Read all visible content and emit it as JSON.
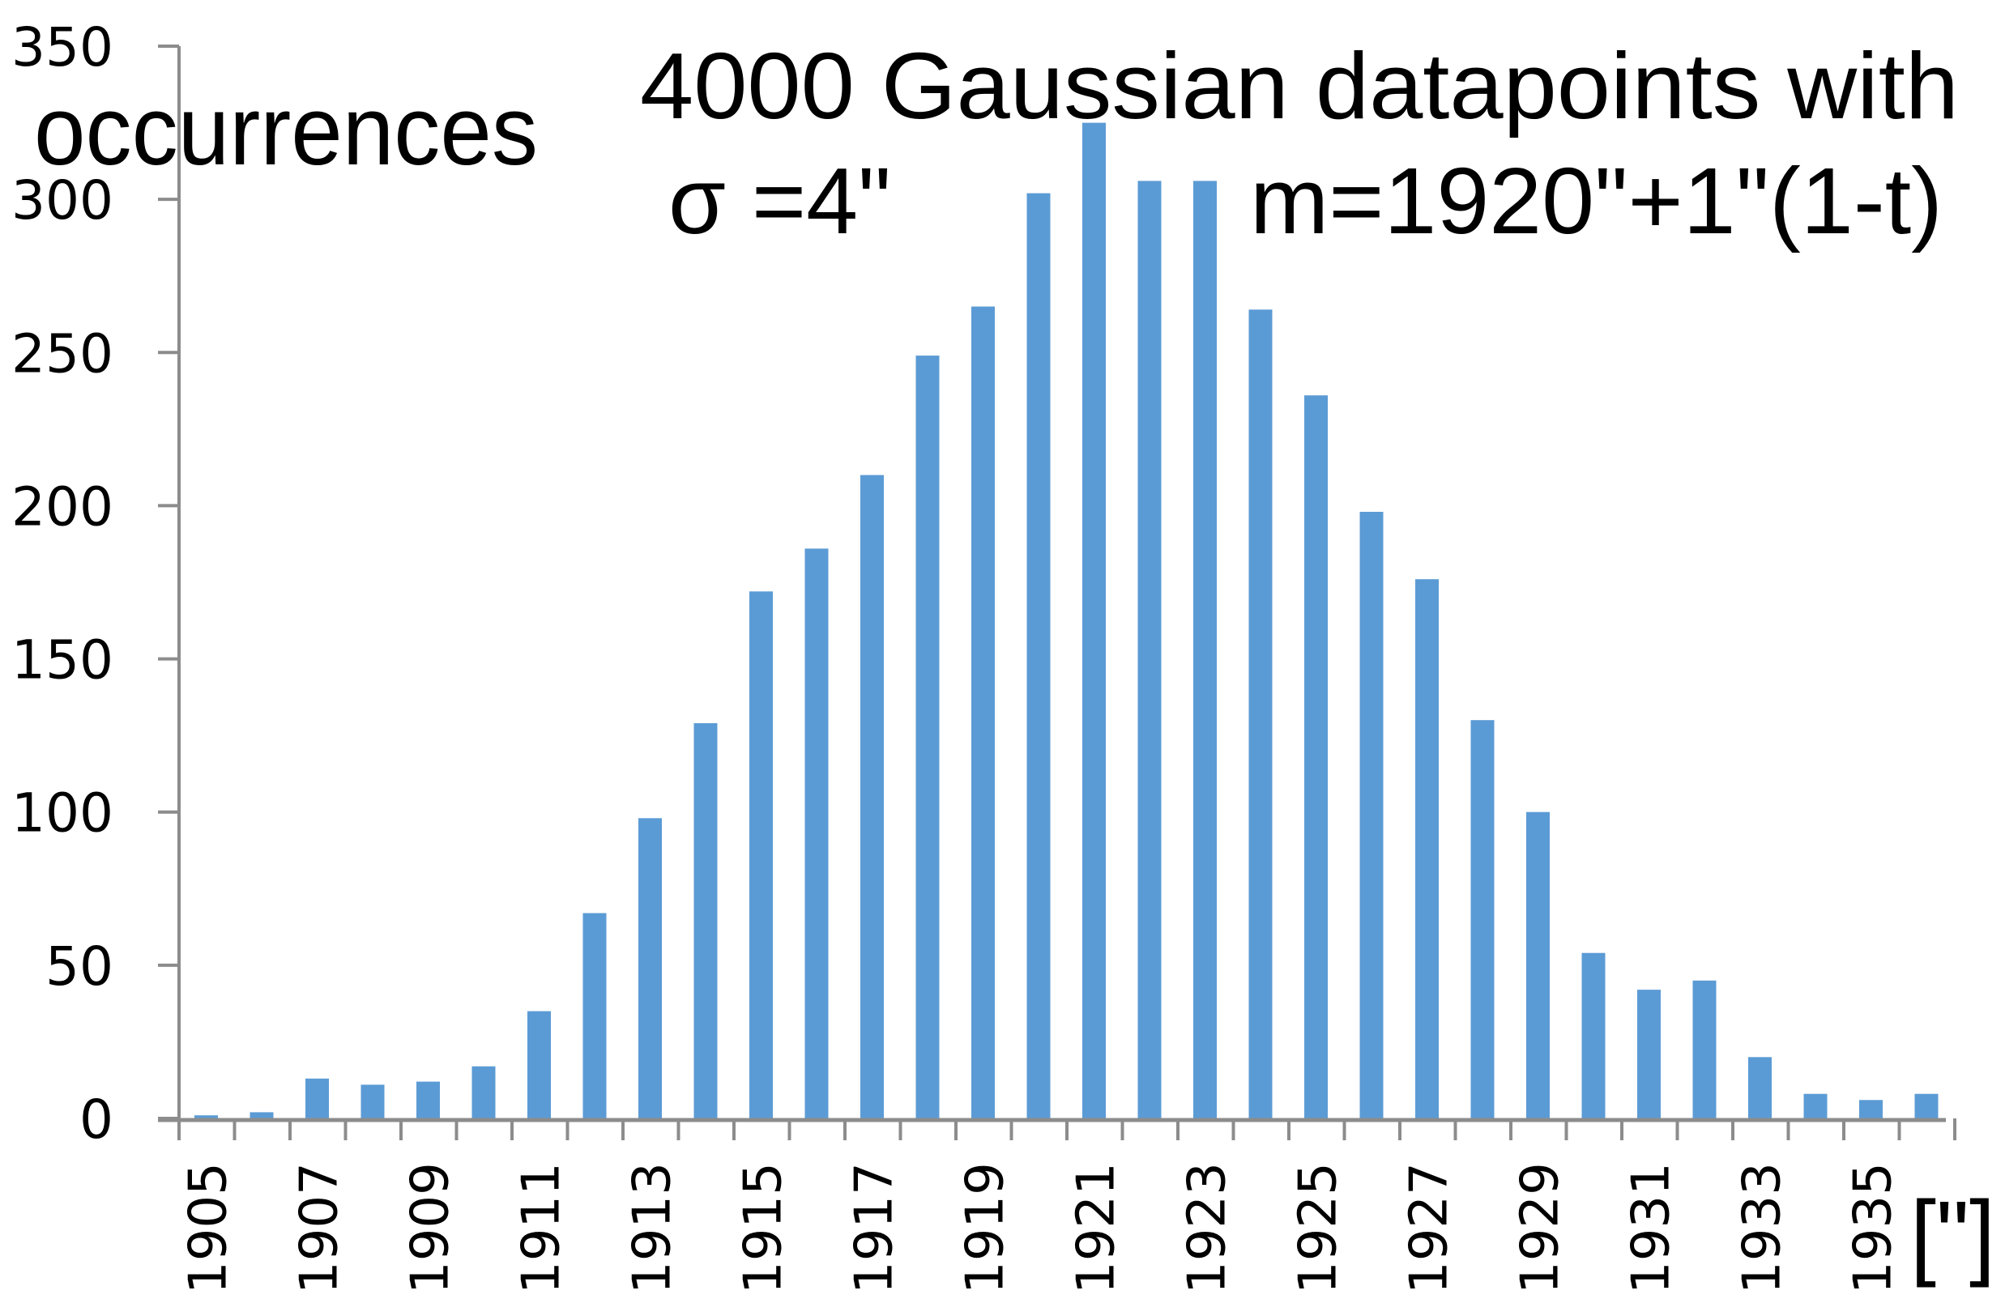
{
  "chart_data": {
    "type": "bar",
    "title": "4000 Gaussian datapoints  with",
    "annotations": [
      "σ =4\"",
      "m=1920\"+1\"(1-t)"
    ],
    "xlabel": "[\"]",
    "ylabel": "occurrences",
    "ylim": [
      0,
      350
    ],
    "yticks": [
      0,
      50,
      100,
      150,
      200,
      250,
      300,
      350
    ],
    "grid": false,
    "legend": null,
    "bar_color": "#5b9bd5",
    "axis_color": "#8c8c8c",
    "categories": [
      1905,
      1906,
      1907,
      1908,
      1909,
      1910,
      1911,
      1912,
      1913,
      1914,
      1915,
      1916,
      1917,
      1918,
      1919,
      1920,
      1921,
      1922,
      1923,
      1924,
      1925,
      1926,
      1927,
      1928,
      1929,
      1930,
      1931,
      1932,
      1933,
      1934,
      1935,
      1936
    ],
    "xtick_labels": [
      "1905",
      "1907",
      "1909",
      "1911",
      "1913",
      "1915",
      "1917",
      "1919",
      "1921",
      "1923",
      "1925",
      "1927",
      "1929",
      "1931",
      "1933",
      "1935"
    ],
    "values": [
      1,
      2,
      13,
      11,
      12,
      17,
      35,
      67,
      98,
      129,
      172,
      186,
      210,
      249,
      265,
      302,
      325,
      306,
      306,
      264,
      236,
      198,
      176,
      130,
      100,
      54,
      42,
      45,
      20,
      8,
      6,
      8
    ]
  },
  "labels": {
    "title_line1": "4000 Gaussian datapoints  with",
    "sigma": "σ =4\"",
    "mean": "m=1920\"+1\"(1-t)",
    "ylabel": "occurrences",
    "xunit": "[\"]"
  }
}
